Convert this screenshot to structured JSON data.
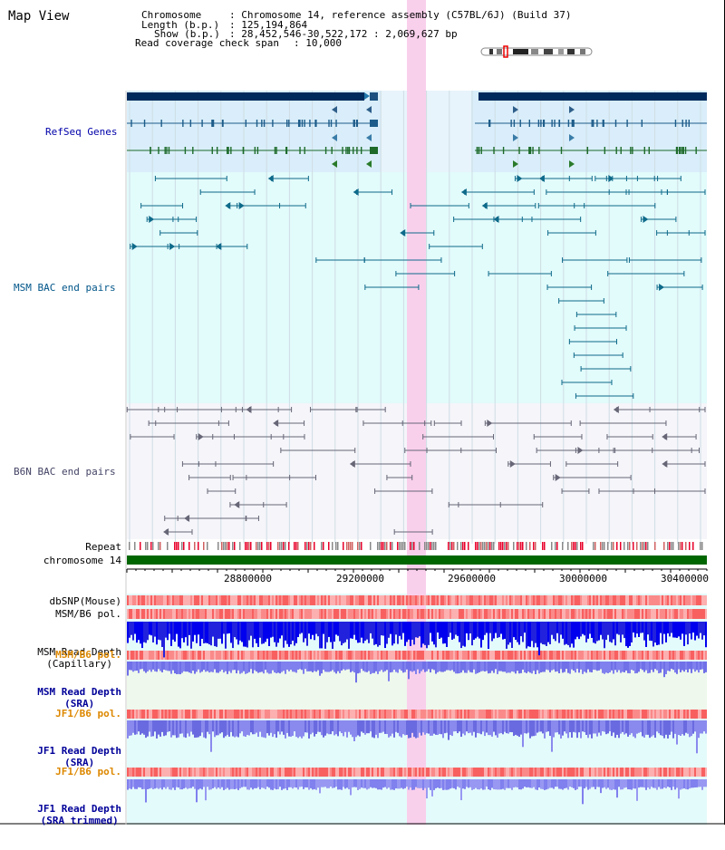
{
  "title": "Map View",
  "info": {
    "chromosome_label": "Chromosome",
    "chromosome_value": "Chromosome 14, reference assembly (C57BL/6J) (Build 37)",
    "length_label": "Length (b.p.)",
    "length_value": "125,194,864",
    "show_label": "Show (b.p.)",
    "show_value": "28,452,546-30,522,172 : 2,069,627 bp",
    "coverage_label": "Read coverage check span",
    "coverage_value": "10,000"
  },
  "tracks": {
    "refseq": "RefSeq Genes",
    "msm_bac": "MSM BAC end pairs",
    "b6n_bac": "B6N BAC end pairs",
    "repeat": "Repeat",
    "chromosome": "chromosome 14",
    "dbsnp": "dbSNP(Mouse)",
    "msm_b6_pol_1": "MSM/B6 pol.",
    "msm_depth_cap_1": "MSM Read Depth",
    "msm_depth_cap_2": "(Capillary)",
    "msm_b6_pol_2": "MSM/B6 pol.",
    "msm_depth_sra_1": "MSM Read Depth",
    "msm_depth_sra_2": "(SRA)",
    "jf1_b6_pol_1": "JF1/B6 pol.",
    "jf1_depth_sra_1": "JF1 Read Depth",
    "jf1_depth_sra_2": "(SRA)",
    "jf1_b6_pol_2": "JF1/B6 pol.",
    "jf1_depth_trim_1": "JF1 Read Depth",
    "jf1_depth_trim_2": "(SRA trimmed)"
  },
  "axis": {
    "ticks": [
      "28800000",
      "29200000",
      "29600000",
      "30000000",
      "30400000"
    ]
  },
  "colors": {
    "refseq_label": "#0000aa",
    "msm_label": "#005588",
    "b6n_label": "#444466",
    "pol_label_orange": "#dd8800",
    "depth_label_blue": "#000099",
    "highlight": "#f9d0ec",
    "chromosome_bar": "#006600"
  }
}
